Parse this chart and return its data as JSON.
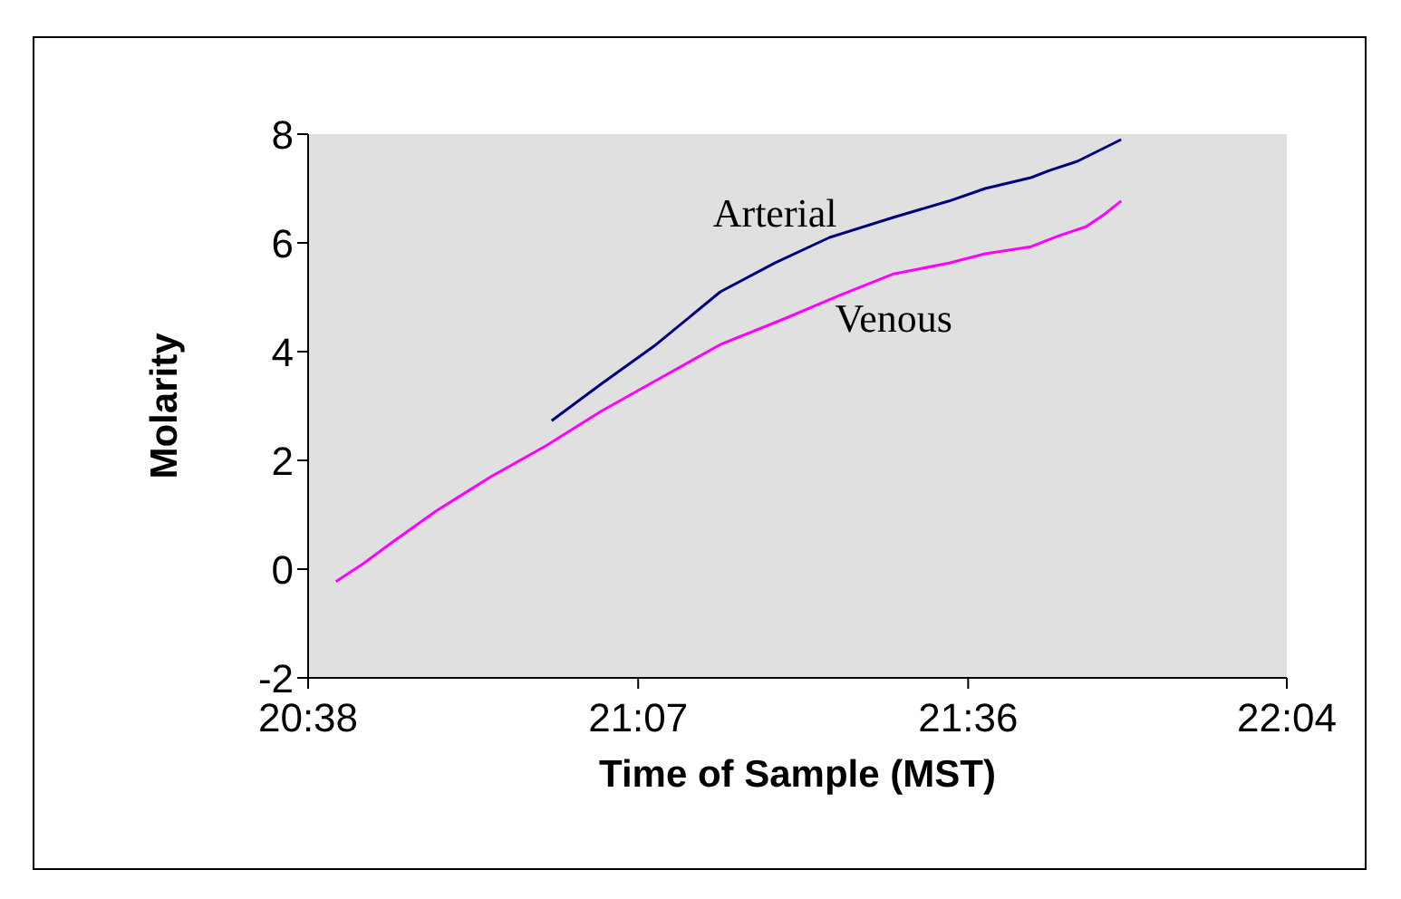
{
  "chart_data": {
    "type": "line",
    "xlabel": "Time of Sample (MST)",
    "ylabel": "Molarity",
    "xlim": [
      20.6333,
      22.0667
    ],
    "xticks": [
      {
        "value": 20.6333,
        "label": "20:38"
      },
      {
        "value": 21.1167,
        "label": "21:07"
      },
      {
        "value": 21.6,
        "label": "21:36"
      },
      {
        "value": 22.0667,
        "label": "22:04"
      }
    ],
    "ylim": [
      -2,
      8
    ],
    "yticks": [
      -2,
      0,
      2,
      4,
      6,
      8
    ],
    "grid": false,
    "marker": "none",
    "line_style": "solid",
    "series": [
      {
        "name": "Arterial",
        "color": "#000080",
        "x": [
          20.99,
          21.062,
          21.143,
          21.237,
          21.317,
          21.397,
          21.491,
          21.572,
          21.625,
          21.692,
          21.719,
          21.76,
          21.824
        ],
        "values": [
          2.73,
          3.4,
          4.13,
          5.1,
          5.63,
          6.1,
          6.47,
          6.77,
          7.0,
          7.2,
          7.33,
          7.5,
          7.9
        ]
      },
      {
        "name": "Venous",
        "color": "#ff00ff",
        "x": [
          20.674,
          20.714,
          20.754,
          20.821,
          20.901,
          20.982,
          21.062,
          21.143,
          21.237,
          21.33,
          21.411,
          21.491,
          21.572,
          21.625,
          21.692,
          21.733,
          21.773,
          21.8,
          21.824
        ],
        "values": [
          -0.23,
          0.1,
          0.47,
          1.07,
          1.7,
          2.27,
          2.9,
          3.47,
          4.13,
          4.6,
          5.03,
          5.43,
          5.63,
          5.8,
          5.93,
          6.13,
          6.3,
          6.53,
          6.77
        ]
      }
    ]
  }
}
